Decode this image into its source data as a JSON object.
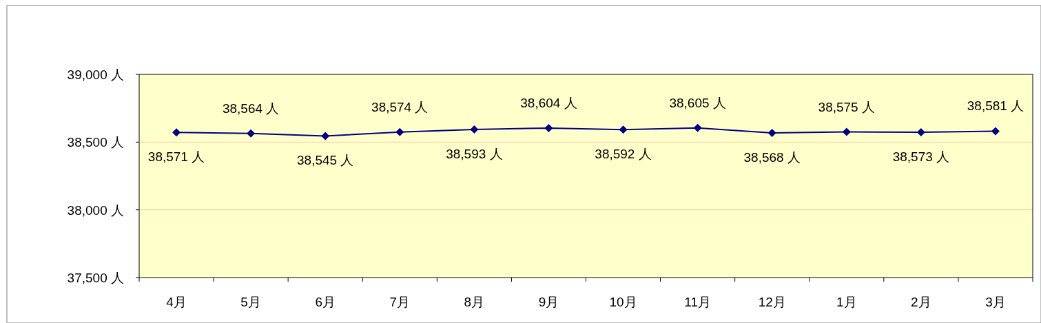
{
  "chart_data": {
    "type": "line",
    "categories": [
      "4月",
      "5月",
      "6月",
      "7月",
      "8月",
      "9月",
      "10月",
      "11月",
      "12月",
      "1月",
      "2月",
      "3月"
    ],
    "series": [
      {
        "color": "#000080",
        "values": [
          38571,
          38564,
          38545,
          38574,
          38593,
          38604,
          38592,
          38605,
          38568,
          38575,
          38573,
          38581
        ],
        "value_labels": [
          "38,571 人",
          "38,564 人",
          "38,545 人",
          "38,574 人",
          "38,593 人",
          "38,604 人",
          "38,592 人",
          "38,605 人",
          "38,568 人",
          "38,575 人",
          "38,573 人",
          "38,581 人"
        ]
      }
    ],
    "ylim": [
      37500,
      39000
    ],
    "yticks": [
      {
        "value": 37500,
        "label": "37,500 人"
      },
      {
        "value": 38000,
        "label": "38,000 人"
      },
      {
        "value": 38500,
        "label": "38,500 人"
      },
      {
        "value": 39000,
        "label": "39,000 人"
      }
    ],
    "grid": "y",
    "marker": "diamond",
    "line_style": "solid"
  }
}
